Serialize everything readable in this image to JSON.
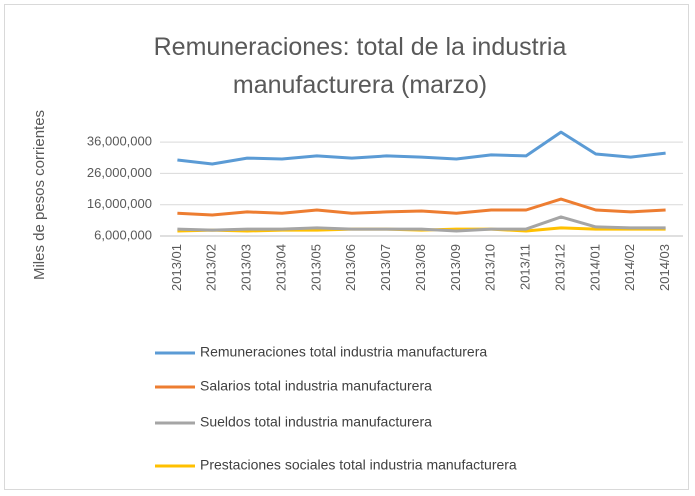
{
  "chart_data": {
    "type": "line",
    "title": "Remuneraciones: total de la industria manufacturera (marzo)",
    "y_axis_label": "Miles de pesos corrientes",
    "categories": [
      "2013/01",
      "2013/02",
      "2013/03",
      "2013/04",
      "2013/05",
      "2013/06",
      "2013/07",
      "2013/08",
      "2013/09",
      "2013/10",
      "2013/11",
      "2013/12",
      "2014/01",
      "2014/02",
      "2014/03"
    ],
    "series": [
      {
        "name": "Remuneraciones total industria manufacturera",
        "color": "#5b9bd5",
        "values": [
          30300000,
          29000000,
          30900000,
          30600000,
          31600000,
          30900000,
          31600000,
          31200000,
          30600000,
          31900000,
          31600000,
          39200000,
          32200000,
          31200000,
          32500000
        ]
      },
      {
        "name": "Salarios total industria manufacturera",
        "color": "#ed7d31",
        "values": [
          13300000,
          12700000,
          13700000,
          13300000,
          14300000,
          13300000,
          13700000,
          14000000,
          13300000,
          14300000,
          14300000,
          17800000,
          14300000,
          13700000,
          14300000
        ]
      },
      {
        "name": "Sueldos total industria manufacturera",
        "color": "#a5a5a5",
        "values": [
          8200000,
          7900000,
          8200000,
          8200000,
          8600000,
          8200000,
          8200000,
          8200000,
          7600000,
          8200000,
          8200000,
          12100000,
          8900000,
          8600000,
          8600000
        ]
      },
      {
        "name": "Prestaciones sociales total industria manufacturera",
        "color": "#ffc000",
        "values": [
          7600000,
          7900000,
          7600000,
          7900000,
          7900000,
          8200000,
          8200000,
          7900000,
          8200000,
          8200000,
          7600000,
          8600000,
          8200000,
          8200000,
          8200000
        ]
      }
    ],
    "ylim": [
      6000000,
      40000000
    ],
    "yticks": [
      {
        "value": 6000000,
        "label": "6,000,000"
      },
      {
        "value": 16000000,
        "label": "16,000,000"
      },
      {
        "value": 26000000,
        "label": "26,000,000"
      },
      {
        "value": 36000000,
        "label": "36,000,000"
      }
    ],
    "grid": true
  }
}
